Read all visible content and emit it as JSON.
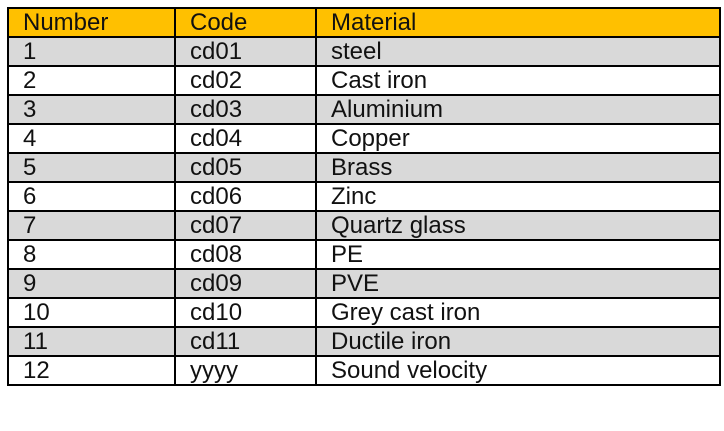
{
  "table": {
    "header_color": "#ffc000",
    "stripe_color": "#d9d9d9",
    "columns": [
      "Number",
      "Code",
      "Material"
    ],
    "rows": [
      {
        "number": "1",
        "code": "cd01",
        "material": "steel"
      },
      {
        "number": "2",
        "code": "cd02",
        "material": "Cast iron"
      },
      {
        "number": "3",
        "code": "cd03",
        "material": "Aluminium"
      },
      {
        "number": "4",
        "code": "cd04",
        "material": "Copper"
      },
      {
        "number": "5",
        "code": "cd05",
        "material": "Brass"
      },
      {
        "number": "6",
        "code": "cd06",
        "material": "Zinc"
      },
      {
        "number": "7",
        "code": "cd07",
        "material": "Quartz glass"
      },
      {
        "number": "8",
        "code": "cd08",
        "material": "PE"
      },
      {
        "number": "9",
        "code": "cd09",
        "material": "PVE"
      },
      {
        "number": "10",
        "code": "cd10",
        "material": "Grey cast iron"
      },
      {
        "number": "11",
        "code": "cd11",
        "material": "Ductile iron"
      },
      {
        "number": "12",
        "code": "yyyy",
        "material": "Sound velocity"
      }
    ]
  }
}
